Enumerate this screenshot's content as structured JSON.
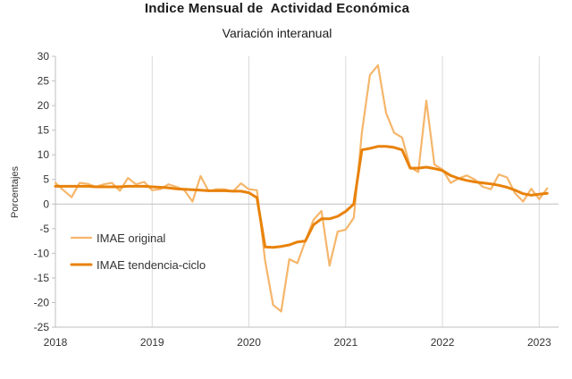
{
  "chart_data": {
    "type": "line",
    "title": "Indice Mensual de  Actividad Económica",
    "subtitle": "Variación interanual",
    "xlabel": "",
    "ylabel": "Porcentajes",
    "ylim": [
      -25,
      30
    ],
    "yticks": [
      -25,
      -20,
      -15,
      -10,
      -5,
      0,
      5,
      10,
      15,
      20,
      25,
      30
    ],
    "xlim": [
      2018,
      2023.2
    ],
    "xticks": [
      2018,
      2019,
      2020,
      2021,
      2022,
      2023
    ],
    "grid": "vertical",
    "legend": "bottom-left",
    "series": [
      {
        "name": "IMAE original",
        "color": "#f5b66b",
        "x": [
          2018.0,
          2018.083,
          2018.167,
          2018.25,
          2018.333,
          2018.417,
          2018.5,
          2018.583,
          2018.667,
          2018.75,
          2018.833,
          2018.917,
          2019.0,
          2019.083,
          2019.167,
          2019.25,
          2019.333,
          2019.417,
          2019.5,
          2019.583,
          2019.667,
          2019.75,
          2019.833,
          2019.917,
          2020.0,
          2020.083,
          2020.167,
          2020.25,
          2020.333,
          2020.417,
          2020.5,
          2020.583,
          2020.667,
          2020.75,
          2020.833,
          2020.917,
          2021.0,
          2021.083,
          2021.167,
          2021.25,
          2021.333,
          2021.417,
          2021.5,
          2021.583,
          2021.667,
          2021.75,
          2021.833,
          2021.917,
          2022.0,
          2022.083,
          2022.167,
          2022.25,
          2022.333,
          2022.417,
          2022.5,
          2022.583,
          2022.667,
          2022.75,
          2022.833,
          2022.917,
          2023.0,
          2023.083
        ],
        "values": [
          4.3,
          2.8,
          1.4,
          4.3,
          4.1,
          3.5,
          4.0,
          4.3,
          2.7,
          5.3,
          4.0,
          4.5,
          2.8,
          3.0,
          4.0,
          3.5,
          2.8,
          0.5,
          5.7,
          2.6,
          3.0,
          3.0,
          2.5,
          4.2,
          3.0,
          2.8,
          -11.5,
          -20.5,
          -21.8,
          -11.2,
          -12.0,
          -7.5,
          -3.2,
          -1.4,
          -12.5,
          -5.6,
          -5.2,
          -2.8,
          14.5,
          26.2,
          28.2,
          18.5,
          14.5,
          13.5,
          7.5,
          6.5,
          21.0,
          8.0,
          7.0,
          4.3,
          5.2,
          5.8,
          5.0,
          3.5,
          3.0,
          6.0,
          5.4,
          2.2,
          0.5,
          3.1,
          1.0,
          3.2
        ]
      },
      {
        "name": "IMAE tendencia-ciclo",
        "color": "#e8820a",
        "x": [
          2018.0,
          2018.083,
          2018.167,
          2018.25,
          2018.333,
          2018.417,
          2018.5,
          2018.583,
          2018.667,
          2018.75,
          2018.833,
          2018.917,
          2019.0,
          2019.083,
          2019.167,
          2019.25,
          2019.333,
          2019.417,
          2019.5,
          2019.583,
          2019.667,
          2019.75,
          2019.833,
          2019.917,
          2020.0,
          2020.083,
          2020.167,
          2020.25,
          2020.333,
          2020.417,
          2020.5,
          2020.583,
          2020.667,
          2020.75,
          2020.833,
          2020.917,
          2021.0,
          2021.083,
          2021.167,
          2021.25,
          2021.333,
          2021.417,
          2021.5,
          2021.583,
          2021.667,
          2021.75,
          2021.833,
          2021.917,
          2022.0,
          2022.083,
          2022.167,
          2022.25,
          2022.333,
          2022.417,
          2022.5,
          2022.583,
          2022.667,
          2022.75,
          2022.833,
          2022.917,
          2023.0,
          2023.083
        ],
        "values": [
          3.6,
          3.6,
          3.6,
          3.6,
          3.6,
          3.5,
          3.5,
          3.5,
          3.5,
          3.6,
          3.6,
          3.6,
          3.5,
          3.4,
          3.3,
          3.1,
          3.0,
          2.9,
          2.8,
          2.7,
          2.7,
          2.7,
          2.6,
          2.6,
          2.3,
          1.3,
          -8.7,
          -8.8,
          -8.6,
          -8.3,
          -7.7,
          -7.5,
          -4.2,
          -3.0,
          -3.0,
          -2.5,
          -1.5,
          0.0,
          11.0,
          11.3,
          11.7,
          11.7,
          11.5,
          11.0,
          7.3,
          7.3,
          7.5,
          7.2,
          6.8,
          5.8,
          5.2,
          4.8,
          4.5,
          4.3,
          4.1,
          3.8,
          3.4,
          2.8,
          2.1,
          1.8,
          2.0,
          2.2
        ]
      }
    ]
  }
}
